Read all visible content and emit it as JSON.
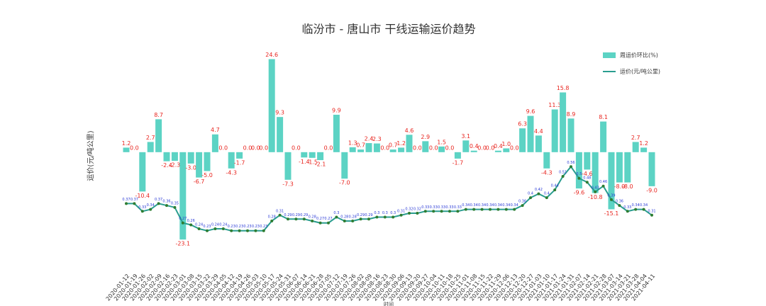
{
  "chart_data": {
    "type": "bar-line",
    "title": "临汾市 - 唐山市 干线运输运价趋势",
    "y_label": "运价(元/吨公里)",
    "x_label": "时间",
    "categories": [
      "2020-01-12",
      "2020-01-19",
      "2020-01-26",
      "2020-02-02",
      "2020-02-09",
      "2020-02-16",
      "2020-02-23",
      "2020-03-01",
      "2020-03-08",
      "2020-03-15",
      "2020-03-22",
      "2020-03-29",
      "2020-04-05",
      "2020-04-12",
      "2020-04-19",
      "2020-04-26",
      "2020-05-03",
      "2020-05-10",
      "2020-05-17",
      "2020-05-24",
      "2020-05-31",
      "2020-06-07",
      "2020-06-14",
      "2020-06-21",
      "2020-06-28",
      "2020-07-05",
      "2020-07-12",
      "2020-07-19",
      "2020-07-26",
      "2020-08-02",
      "2020-08-09",
      "2020-08-16",
      "2020-08-23",
      "2020-08-30",
      "2020-09-06",
      "2020-09-13",
      "2020-09-20",
      "2020-09-27",
      "2020-10-04",
      "2020-10-11",
      "2020-10-18",
      "2020-10-25",
      "2020-11-01",
      "2020-11-08",
      "2020-11-15",
      "2020-11-22",
      "2020-11-29",
      "2020-12-06",
      "2020-12-13",
      "2020-12-20",
      "2020-12-27",
      "2021-01-03",
      "2021-01-10",
      "2021-01-17",
      "2021-01-24",
      "2021-01-31",
      "2021-02-07",
      "2021-02-14",
      "2021-02-21",
      "2021-02-28",
      "2021-03-07",
      "2021-03-14",
      "2021-03-21",
      "2021-03-28",
      "2021-04-04",
      "2021-04-11"
    ],
    "series": [
      {
        "name": "周运价环比(%)",
        "type": "bar",
        "color": "#5cd3c4",
        "label_color": "#e8251f",
        "values": [
          1.2,
          0.0,
          -10.4,
          2.7,
          8.7,
          -2.4,
          -2.3,
          -23.1,
          -3.0,
          -6.7,
          -5.0,
          4.7,
          0.0,
          -4.3,
          -1.7,
          0.0,
          0.0,
          0.0,
          24.6,
          9.3,
          -7.3,
          0.0,
          -1.4,
          -1.5,
          -2.1,
          0.0,
          9.9,
          -7.0,
          1.3,
          0.7,
          2.4,
          2.3,
          0.0,
          0.7,
          1.2,
          4.6,
          0.0,
          2.9,
          0.0,
          1.5,
          0.0,
          -1.7,
          3.1,
          0.4,
          0.0,
          0.0,
          0.4,
          1.0,
          0.0,
          6.3,
          9.6,
          4.4,
          -4.3,
          11.3,
          15.8,
          8.9,
          -9.6,
          -4.6,
          -10.8,
          8.1,
          -15.1,
          -8.0,
          -8.0,
          2.7,
          1.2,
          -9.0
        ],
        "value_labels": [
          "1.2",
          "0.0",
          "-10.4",
          "2.7",
          "8.7",
          "-2.4",
          "-2.3",
          "-23.1",
          "-3.0",
          "-6.7",
          "-5.0",
          "4.7",
          "0.0",
          "-4.3",
          "-1.7",
          "0.0",
          "0.0",
          "0.0",
          "24.6",
          "9.3",
          "-7.3",
          "0.0",
          "-1.4",
          "-1.5",
          "-2.1",
          "0.0",
          "9.9",
          "-7.0",
          "1.3",
          "0.7",
          "2.4",
          "2.3",
          "0.0",
          "0.7",
          "1.2",
          "4.6",
          "0.0",
          "2.9",
          "0.0",
          "1.5",
          "0.0",
          "-1.7",
          "3.1",
          "0.4",
          "0.0",
          "0.0",
          "0.4",
          "1.0",
          "0.0",
          "6.3",
          "9.6",
          "4.4",
          "-4.3",
          "11.3",
          "15.8",
          "8.9",
          "-9.6",
          "-4.6",
          "-10.8",
          "8.1",
          "-15.1",
          "-8.0",
          "-8.0",
          "2.7",
          "1.2",
          "-9.0"
        ]
      },
      {
        "name": "运价(元/吨公里)",
        "type": "line",
        "axis": "y2",
        "color": "#2a9d8f",
        "marker_color": "#2e7d32",
        "label_color": "#2b3bd6",
        "values": [
          0.37,
          0.37,
          0.33,
          0.34,
          0.37,
          0.36,
          0.35,
          0.27,
          0.26,
          0.24,
          0.23,
          0.24,
          0.24,
          0.23,
          0.23,
          0.23,
          0.23,
          0.23,
          0.28,
          0.31,
          0.29,
          0.29,
          0.29,
          0.28,
          0.27,
          0.27,
          0.3,
          0.28,
          0.28,
          0.29,
          0.29,
          0.3,
          0.3,
          0.3,
          0.31,
          0.32,
          0.32,
          0.33,
          0.33,
          0.33,
          0.33,
          0.33,
          0.34,
          0.34,
          0.34,
          0.34,
          0.34,
          0.34,
          0.34,
          0.36,
          0.4,
          0.42,
          0.4,
          0.44,
          0.51,
          0.56,
          0.5,
          0.48,
          0.43,
          0.46,
          0.39,
          0.36,
          0.33,
          0.34,
          0.34,
          0.31
        ]
      }
    ],
    "ylim": [
      -30,
      29
    ],
    "y2lim": [
      0.05,
      1.2
    ],
    "legend": "upper right"
  }
}
